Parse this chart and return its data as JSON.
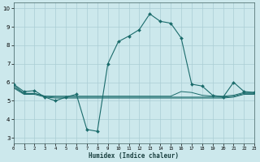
{
  "xlabel": "Humidex (Indice chaleur)",
  "bg_color": "#cce8ec",
  "grid_color": "#aacdd4",
  "line_color": "#1a6b6b",
  "xlim": [
    0,
    23
  ],
  "ylim": [
    2.7,
    10.3
  ],
  "yticks": [
    3,
    4,
    5,
    6,
    7,
    8,
    9,
    10
  ],
  "xticks": [
    0,
    1,
    2,
    3,
    4,
    5,
    6,
    7,
    8,
    9,
    10,
    11,
    12,
    13,
    14,
    15,
    16,
    17,
    18,
    19,
    20,
    21,
    22,
    23
  ],
  "main_x": [
    0,
    1,
    2,
    3,
    4,
    5,
    6,
    7,
    8,
    9,
    10,
    11,
    12,
    13,
    14,
    15,
    16,
    17,
    18,
    19,
    20,
    21,
    22,
    23
  ],
  "main_y": [
    5.9,
    5.5,
    5.55,
    5.2,
    5.0,
    5.2,
    5.35,
    3.45,
    3.35,
    7.0,
    8.2,
    8.5,
    8.85,
    9.7,
    9.3,
    9.2,
    8.4,
    5.9,
    5.8,
    5.3,
    5.2,
    6.0,
    5.5,
    5.45
  ],
  "flat1_x": [
    0,
    1,
    2,
    3,
    4,
    5,
    6,
    7,
    8,
    9,
    10,
    11,
    12,
    13,
    14,
    15,
    16,
    17,
    18,
    19,
    20,
    21,
    22,
    23
  ],
  "flat1_y": [
    5.85,
    5.4,
    5.4,
    5.25,
    5.25,
    5.25,
    5.25,
    5.25,
    5.25,
    5.25,
    5.25,
    5.25,
    5.25,
    5.25,
    5.25,
    5.25,
    5.5,
    5.45,
    5.3,
    5.25,
    5.25,
    5.3,
    5.45,
    5.45
  ],
  "flat2_x": [
    0,
    1,
    2,
    3,
    4,
    5,
    6,
    7,
    8,
    9,
    10,
    11,
    12,
    13,
    14,
    15,
    16,
    17,
    18,
    19,
    20,
    21,
    22,
    23
  ],
  "flat2_y": [
    5.75,
    5.4,
    5.4,
    5.25,
    5.2,
    5.2,
    5.2,
    5.2,
    5.2,
    5.2,
    5.2,
    5.2,
    5.2,
    5.2,
    5.2,
    5.2,
    5.2,
    5.2,
    5.2,
    5.2,
    5.2,
    5.25,
    5.4,
    5.4
  ],
  "flat3_x": [
    0,
    1,
    2,
    3,
    4,
    5,
    6,
    7,
    8,
    9,
    10,
    11,
    12,
    13,
    14,
    15,
    16,
    17,
    18,
    19,
    20,
    21,
    22,
    23
  ],
  "flat3_y": [
    5.7,
    5.35,
    5.35,
    5.2,
    5.15,
    5.15,
    5.15,
    5.15,
    5.15,
    5.15,
    5.15,
    5.15,
    5.15,
    5.15,
    5.15,
    5.15,
    5.15,
    5.15,
    5.15,
    5.15,
    5.15,
    5.2,
    5.35,
    5.35
  ]
}
